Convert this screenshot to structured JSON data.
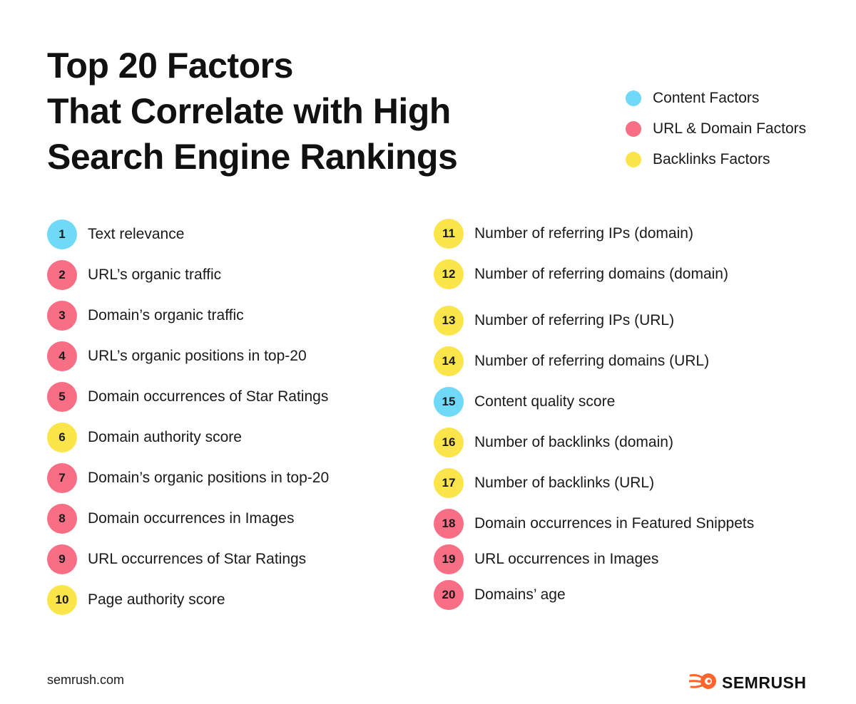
{
  "title_lines": [
    "Top 20 Factors",
    "That Correlate with High",
    "Search Engine Rankings"
  ],
  "colors": {
    "content": "#6fd9f7",
    "url_domain": "#f86e85",
    "backlinks": "#fbe54a",
    "brand": "#ff642d"
  },
  "legend": [
    {
      "label": "Content Factors",
      "category": "content"
    },
    {
      "label": "URL & Domain Factors",
      "category": "url_domain"
    },
    {
      "label": "Backlinks Factors",
      "category": "backlinks"
    }
  ],
  "factors": [
    {
      "rank": "1",
      "label": "Text relevance",
      "category": "content"
    },
    {
      "rank": "2",
      "label": "URL’s organic traffic",
      "category": "url_domain"
    },
    {
      "rank": "3",
      "label": "Domain’s organic traffic",
      "category": "url_domain"
    },
    {
      "rank": "4",
      "label": "URL’s organic positions in top-20",
      "category": "url_domain"
    },
    {
      "rank": "5",
      "label": "Domain occurrences of Star Ratings",
      "category": "url_domain"
    },
    {
      "rank": "6",
      "label": "Domain authority score",
      "category": "backlinks"
    },
    {
      "rank": "7",
      "label": "Domain’s organic positions in top-20",
      "category": "url_domain"
    },
    {
      "rank": "8",
      "label": "Domain occurrences in Images",
      "category": "url_domain"
    },
    {
      "rank": "9",
      "label": "URL occurrences of Star Ratings",
      "category": "url_domain"
    },
    {
      "rank": "10",
      "label": "Page authority score",
      "category": "backlinks"
    },
    {
      "rank": "11",
      "label": "Number of referring IPs (domain)",
      "category": "backlinks"
    },
    {
      "rank": "12",
      "label": "Number of referring domains (domain)",
      "category": "backlinks"
    },
    {
      "rank": "13",
      "label": "Number of referring IPs (URL)",
      "category": "backlinks"
    },
    {
      "rank": "14",
      "label": "Number of referring domains (URL)",
      "category": "backlinks"
    },
    {
      "rank": "15",
      "label": "Content quality score",
      "category": "content"
    },
    {
      "rank": "16",
      "label": "Number of backlinks (domain)",
      "category": "backlinks"
    },
    {
      "rank": "17",
      "label": "Number of backlinks (URL)",
      "category": "backlinks"
    },
    {
      "rank": "18",
      "label": "Domain occurrences in Featured Snippets",
      "category": "url_domain"
    },
    {
      "rank": "19",
      "label": "URL occurrences in Images",
      "category": "url_domain"
    },
    {
      "rank": "20",
      "label": "Domains’ age",
      "category": "url_domain"
    }
  ],
  "footer": {
    "url": "semrush.com",
    "brand": "SEMRUSH",
    "brand_icon": "semrush-fireball-icon"
  }
}
